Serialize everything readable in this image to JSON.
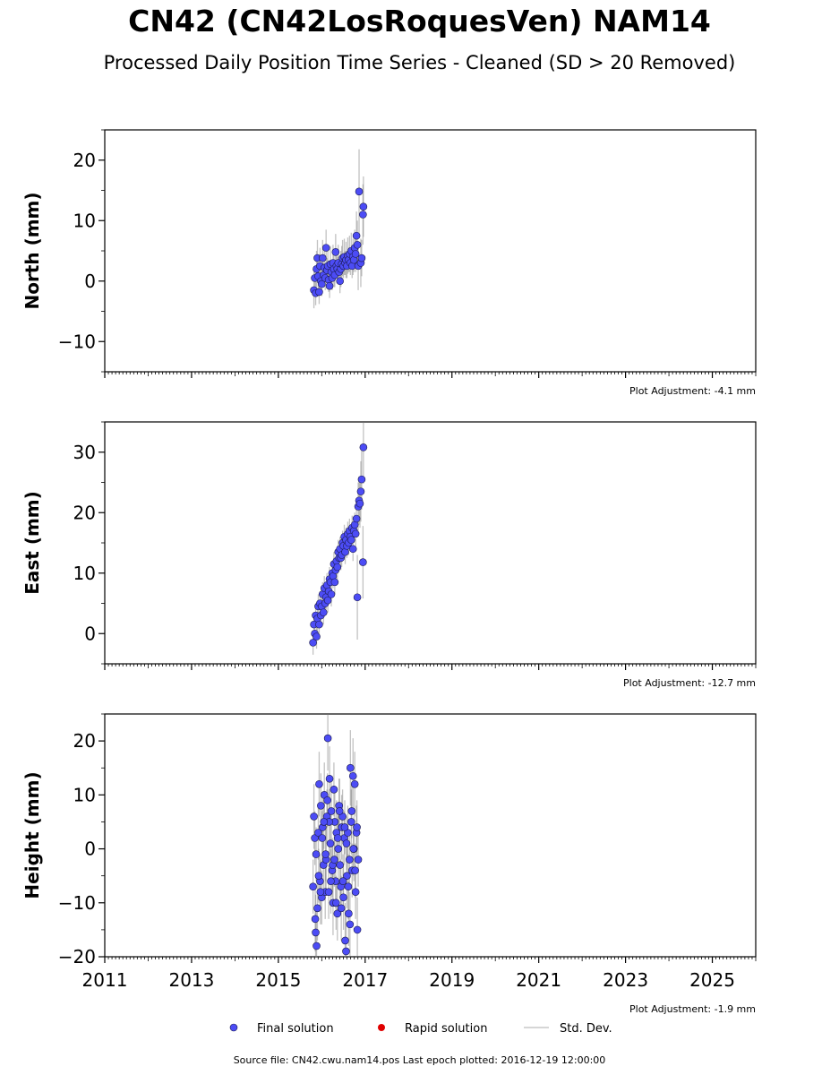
{
  "title": "CN42 (CN42LosRoquesVen) NAM14",
  "subtitle": "Processed Daily Position Time Series - Cleaned (SD > 20 Removed)",
  "footer": "Source file: CN42.cwu.nam14.pos  Last epoch plotted: 2016-12-19 12:00:00",
  "legend": {
    "final": "Final solution",
    "rapid": "Rapid solution",
    "std": "Std. Dev."
  },
  "colors": {
    "final": "#4c4cf5",
    "rapid": "#e00000",
    "std": "#c8c8c8",
    "error_bar": "#777777"
  },
  "chart_data": [
    {
      "type": "scatter",
      "ylabel": "North (mm)",
      "adjustment": "Plot Adjustment: -4.1 mm",
      "xlim": [
        2011,
        2026
      ],
      "ylim": [
        -15,
        25
      ],
      "yticks": [
        -10,
        0,
        10,
        20
      ],
      "ytick_labels": [
        "−10",
        "0",
        "10",
        "20"
      ],
      "series": [
        {
          "color": "#4c4cf5",
          "x": [
            2015.82,
            2015.84,
            2015.86,
            2015.88,
            2015.9,
            2015.92,
            2015.94,
            2015.96,
            2015.98,
            2016.0,
            2016.02,
            2016.04,
            2016.06,
            2016.08,
            2016.1,
            2016.12,
            2016.14,
            2016.16,
            2016.18,
            2016.2,
            2016.22,
            2016.24,
            2016.26,
            2016.28,
            2016.3,
            2016.32,
            2016.34,
            2016.36,
            2016.38,
            2016.4,
            2016.42,
            2016.44,
            2016.46,
            2016.48,
            2016.5,
            2016.52,
            2016.54,
            2016.56,
            2016.58,
            2016.6,
            2016.62,
            2016.64,
            2016.66,
            2016.68,
            2016.7,
            2016.72,
            2016.74,
            2016.76,
            2016.78,
            2016.8,
            2016.82,
            2016.84,
            2016.86,
            2016.9,
            2016.92,
            2016.95,
            2016.96
          ],
          "y": [
            -1.5,
            0.5,
            -2.0,
            2.0,
            3.8,
            0.8,
            -1.8,
            2.5,
            0.0,
            -0.5,
            3.8,
            1.0,
            2.2,
            0.5,
            5.5,
            1.8,
            2.5,
            0.2,
            -0.8,
            2.8,
            1.5,
            0.5,
            3.0,
            2.0,
            1.0,
            4.8,
            2.5,
            2.0,
            3.0,
            1.5,
            0.0,
            2.0,
            2.8,
            3.8,
            2.5,
            4.0,
            3.0,
            3.5,
            2.5,
            4.2,
            3.5,
            4.5,
            3.0,
            5.0,
            2.5,
            4.0,
            3.5,
            5.5,
            4.5,
            7.5,
            6.0,
            2.5,
            14.8,
            3.0,
            3.8,
            11.0,
            12.3
          ],
          "err": [
            3,
            2,
            2,
            3,
            3,
            2,
            2,
            3,
            2,
            2,
            3,
            2,
            3,
            2,
            3,
            2,
            3,
            2,
            2,
            3,
            2,
            2,
            3,
            3,
            2,
            3,
            2,
            2,
            3,
            2,
            2,
            3,
            3,
            3,
            2,
            3,
            2,
            3,
            2,
            3,
            2,
            3,
            2,
            3,
            2,
            3,
            2,
            3,
            3,
            4,
            4,
            4,
            7,
            4,
            3,
            5,
            5
          ]
        }
      ]
    },
    {
      "type": "scatter",
      "ylabel": "East (mm)",
      "adjustment": "Plot Adjustment: -12.7 mm",
      "xlim": [
        2011,
        2026
      ],
      "ylim": [
        -5,
        35
      ],
      "yticks": [
        0,
        10,
        20,
        30
      ],
      "ytick_labels": [
        "0",
        "10",
        "20",
        "30"
      ],
      "series": [
        {
          "color": "#4c4cf5",
          "x": [
            2015.8,
            2015.82,
            2015.84,
            2015.86,
            2015.88,
            2015.9,
            2015.92,
            2015.94,
            2015.96,
            2015.98,
            2016.0,
            2016.02,
            2016.04,
            2016.06,
            2016.08,
            2016.1,
            2016.12,
            2016.14,
            2016.16,
            2016.18,
            2016.2,
            2016.22,
            2016.24,
            2016.26,
            2016.28,
            2016.3,
            2016.32,
            2016.34,
            2016.36,
            2016.38,
            2016.4,
            2016.42,
            2016.44,
            2016.46,
            2016.48,
            2016.5,
            2016.52,
            2016.54,
            2016.56,
            2016.58,
            2016.6,
            2016.62,
            2016.64,
            2016.66,
            2016.68,
            2016.7,
            2016.72,
            2016.74,
            2016.76,
            2016.78,
            2016.8,
            2016.82,
            2016.84,
            2016.86,
            2016.88,
            2016.9,
            2016.92,
            2016.95,
            2016.96
          ],
          "y": [
            -1.5,
            1.5,
            0.0,
            3.0,
            -0.5,
            2.5,
            4.5,
            1.5,
            5.0,
            3.0,
            4.5,
            6.5,
            3.5,
            7.5,
            5.0,
            6.0,
            8.0,
            5.5,
            7.0,
            9.0,
            8.5,
            6.5,
            10.0,
            9.5,
            11.5,
            8.5,
            10.5,
            12.0,
            11.0,
            13.5,
            12.5,
            14.0,
            12.5,
            13.0,
            15.0,
            14.5,
            16.0,
            13.5,
            15.5,
            14.5,
            16.5,
            15.0,
            17.0,
            16.0,
            15.5,
            17.5,
            14.0,
            17.0,
            18.0,
            16.5,
            19.0,
            6.0,
            21.0,
            22.0,
            21.5,
            23.5,
            25.5,
            11.8,
            30.8
          ],
          "err": [
            2,
            2,
            2,
            2,
            2,
            2,
            2,
            2,
            2,
            2,
            2,
            2,
            2,
            2,
            2,
            2,
            2,
            2,
            2,
            2,
            2,
            2,
            2,
            2,
            2,
            2,
            2,
            2,
            2,
            2,
            2,
            2,
            2,
            2,
            2,
            2,
            2,
            2,
            2,
            2,
            2,
            2,
            2,
            2,
            2,
            2,
            2,
            2,
            2,
            2,
            3,
            7,
            4,
            4,
            4,
            5,
            5,
            6,
            6
          ]
        }
      ]
    },
    {
      "type": "scatter",
      "ylabel": "Height (mm)",
      "adjustment": "Plot Adjustment: -1.9 mm",
      "xlim": [
        2011,
        2026
      ],
      "ylim": [
        -20,
        25
      ],
      "yticks": [
        -20,
        -10,
        0,
        10,
        20
      ],
      "ytick_labels": [
        "−20",
        "−10",
        "0",
        "10",
        "20"
      ],
      "xticks": [
        2011,
        2013,
        2015,
        2017,
        2019,
        2021,
        2023,
        2025
      ],
      "xtick_labels": [
        "2011",
        "2013",
        "2015",
        "2017",
        "2019",
        "2021",
        "2023",
        "2025"
      ],
      "series": [
        {
          "color": "#4c4cf5",
          "x": [
            2015.8,
            2015.82,
            2015.84,
            2015.86,
            2015.88,
            2015.9,
            2015.92,
            2015.94,
            2015.96,
            2015.98,
            2016.0,
            2016.02,
            2016.04,
            2016.06,
            2016.08,
            2016.1,
            2016.12,
            2016.14,
            2016.16,
            2016.18,
            2016.2,
            2016.22,
            2016.24,
            2016.26,
            2016.28,
            2016.3,
            2016.32,
            2016.34,
            2016.36,
            2016.38,
            2016.4,
            2016.42,
            2016.44,
            2016.46,
            2016.48,
            2016.5,
            2016.52,
            2016.54,
            2016.56,
            2016.58,
            2016.6,
            2016.62,
            2016.64,
            2016.66,
            2016.68,
            2016.7,
            2016.72,
            2016.74,
            2016.76,
            2016.78,
            2016.8,
            2016.82,
            2016.84,
            2015.85,
            2015.93,
            2016.01,
            2016.09,
            2016.17,
            2016.25,
            2016.33,
            2016.41,
            2016.49,
            2016.57,
            2016.65,
            2016.73,
            2016.81,
            2015.87,
            2015.97,
            2016.05,
            2016.13,
            2016.21,
            2016.29,
            2016.37,
            2016.45,
            2016.53,
            2016.61,
            2016.69,
            2016.77
          ],
          "y": [
            -7,
            6,
            2,
            -15.5,
            -18,
            -11,
            3,
            12,
            -6,
            8,
            -9,
            4,
            -3,
            10,
            -8,
            -2,
            6,
            20.5,
            -8,
            13,
            1,
            7,
            -4,
            -10,
            11,
            5,
            -6,
            3,
            -12,
            0,
            8,
            -3,
            -7,
            4,
            6,
            -9,
            2,
            -17,
            -19,
            -5,
            3,
            -12,
            -2,
            15,
            5,
            -4,
            13.5,
            0,
            12,
            -8,
            3,
            -15,
            -2,
            -13,
            -5,
            2,
            -1,
            5,
            -3,
            -10,
            7,
            -6,
            1,
            -14,
            0,
            4,
            -1,
            -8,
            5,
            9,
            -6,
            -2,
            2,
            -11,
            4,
            -7,
            7,
            -4
          ],
          "err": [
            5,
            6,
            5,
            7,
            7,
            6,
            5,
            6,
            5,
            6,
            5,
            6,
            5,
            6,
            5,
            6,
            5,
            6,
            5,
            6,
            5,
            6,
            5,
            6,
            5,
            6,
            5,
            6,
            5,
            6,
            5,
            6,
            5,
            6,
            5,
            6,
            5,
            7,
            7,
            6,
            5,
            6,
            5,
            7,
            6,
            5,
            7,
            6,
            6,
            5,
            5,
            6,
            5,
            6,
            5,
            5,
            5,
            6,
            5,
            5,
            6,
            5,
            5,
            6,
            5,
            5,
            5,
            6,
            5,
            5,
            6,
            5,
            5,
            6,
            5,
            6,
            5,
            5
          ]
        }
      ]
    }
  ]
}
